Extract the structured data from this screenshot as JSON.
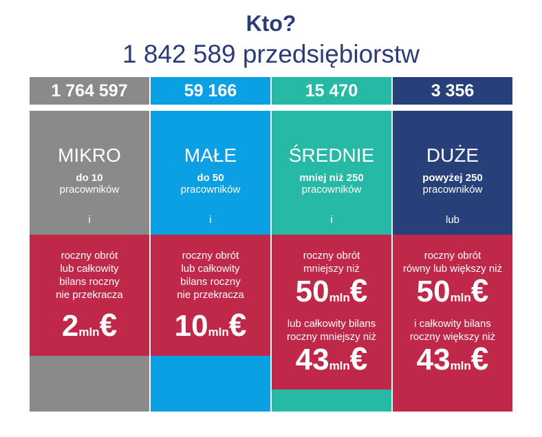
{
  "title": "Kto?",
  "subtitle": "1 842 589 przedsiębiorstw",
  "colors": {
    "mikro": "#8a8a8a",
    "male": "#0b9fe3",
    "srednie": "#25b9a6",
    "duze": "#27407a",
    "red": "#c0284a",
    "title": "#2b3b78"
  },
  "columns": [
    {
      "count": "1 764 597",
      "category": "MIKRO",
      "employees_top": "do 10",
      "employees_bottom": "pracowników",
      "conjunction": "i",
      "criteria_1": "roczny obrót\nlub całkowity\nbilans roczny\nnie przekracza",
      "amount_1": {
        "num": "2",
        "unit": "mln",
        "sym": "€"
      }
    },
    {
      "count": "59 166",
      "category": "MAŁE",
      "employees_top": "do 50",
      "employees_bottom": "pracowników",
      "conjunction": "i",
      "criteria_1": "roczny obrót\nlub całkowity\nbilans roczny\nnie przekracza",
      "amount_1": {
        "num": "10",
        "unit": "mln",
        "sym": "€"
      }
    },
    {
      "count": "15 470",
      "category": "ŚREDNIE",
      "employees_top": "mniej niż 250",
      "employees_bottom": "pracowników",
      "conjunction": "i",
      "criteria_1": "roczny obrót\nmniejszy niż",
      "amount_1": {
        "num": "50",
        "unit": "mln",
        "sym": "€"
      },
      "criteria_2": "lub całkowity bilans\nroczny mniejszy niż",
      "amount_2": {
        "num": "43",
        "unit": "mln",
        "sym": "€"
      }
    },
    {
      "count": "3 356",
      "category": "DUŻE",
      "employees_top": "powyżej 250",
      "employees_bottom": "pracowników",
      "conjunction": "lub",
      "criteria_1": "roczny obrót\nrówny lub większy niż",
      "amount_1": {
        "num": "50",
        "unit": "mln",
        "sym": "€"
      },
      "criteria_2": "i całkowity bilans\nroczny większy niż",
      "amount_2": {
        "num": "43",
        "unit": "mln",
        "sym": "€"
      }
    }
  ]
}
